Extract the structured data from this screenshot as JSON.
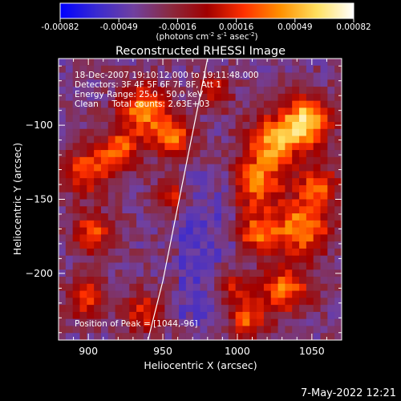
{
  "colorbar": {
    "ticks": [
      "-0.00082",
      "-0.00049",
      "-0.00016",
      "0.00016",
      "0.00049",
      "0.00082"
    ],
    "units_lines": [
      "(photons cm",
      "-2",
      " s",
      "-1",
      " asec",
      "-2",
      ")"
    ],
    "stops": [
      "#0000ff",
      "#3a2ad0",
      "#7040a0",
      "#8a2a40",
      "#a00000",
      "#ff3000",
      "#ff9000",
      "#ffe060",
      "#ffffff"
    ]
  },
  "chart_data": {
    "type": "heatmap",
    "title": "Reconstructed RHESSI Image",
    "xlabel": "Heliocentric X (arcsec)",
    "ylabel": "Heliocentric Y (arcsec)",
    "xlim": [
      880,
      1070
    ],
    "ylim": [
      -245,
      -55
    ],
    "xticks": [
      900,
      950,
      1000,
      1050
    ],
    "yticks": [
      -100,
      -150,
      -200
    ],
    "ytick_labels": [
      "−100",
      "−150",
      "−200"
    ],
    "annotations": [
      "18-Dec-2007 19:10:12.000 to 19:11:48.000",
      "Detectors: 3F 4F 5F 6F 7F 8F, Att 1",
      "Energy Range: 25.0 - 50.0 keV",
      "Clean     Total counts: 2.63E+03"
    ],
    "peak_label": "Position of Peak = [1044,-96]",
    "limb_curve": [
      [
        940,
        -245
      ],
      [
        950,
        -205
      ],
      [
        960,
        -155
      ],
      [
        970,
        -105
      ],
      [
        980,
        -55
      ]
    ]
  },
  "footer": {
    "timestamp": "7-May-2022 12:21"
  }
}
